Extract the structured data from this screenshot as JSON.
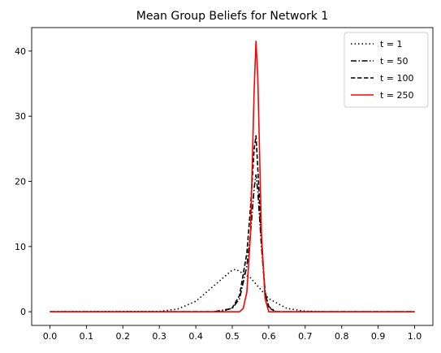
{
  "chart_data": {
    "type": "line",
    "title": "Mean Group Beliefs for Network 1",
    "xlabel": "",
    "ylabel": "",
    "xlim": [
      -0.05,
      1.05
    ],
    "ylim": [
      -2.1,
      43.6
    ],
    "xticks": [
      0.0,
      0.1,
      0.2,
      0.3,
      0.4,
      0.5,
      0.6,
      0.7,
      0.8,
      0.9,
      1.0
    ],
    "xtick_labels": [
      "0.0",
      "0.1",
      "0.2",
      "0.3",
      "0.4",
      "0.5",
      "0.6",
      "0.7",
      "0.8",
      "0.9",
      "1.0"
    ],
    "yticks": [
      0,
      10,
      20,
      30,
      40
    ],
    "ytick_labels": [
      "0",
      "10",
      "20",
      "30",
      "40"
    ],
    "grid": false,
    "legend_position": "top-right",
    "series": [
      {
        "name": "t = 1",
        "style": "dotted",
        "color": "#000000",
        "x": [
          0.0,
          0.3,
          0.35,
          0.4,
          0.45,
          0.5,
          0.51,
          0.55,
          0.6,
          0.65,
          0.7,
          0.75,
          1.0
        ],
        "y": [
          0.0,
          0.05,
          0.4,
          1.6,
          4.0,
          6.4,
          6.5,
          5.2,
          2.0,
          0.5,
          0.08,
          0.0,
          0.0
        ]
      },
      {
        "name": "t = 50",
        "style": "dashdot",
        "color": "#000000",
        "x": [
          0.0,
          0.45,
          0.5,
          0.52,
          0.54,
          0.55,
          0.56,
          0.565,
          0.57,
          0.58,
          0.59,
          0.6,
          0.62,
          1.0
        ],
        "y": [
          0.0,
          0.0,
          0.5,
          2.0,
          7.0,
          12.0,
          19.0,
          21.0,
          18.5,
          10.0,
          3.0,
          0.8,
          0.0,
          0.0
        ]
      },
      {
        "name": "t = 100",
        "style": "dashed",
        "color": "#000000",
        "x": [
          0.0,
          0.47,
          0.5,
          0.52,
          0.54,
          0.55,
          0.56,
          0.565,
          0.57,
          0.58,
          0.59,
          0.6,
          0.62,
          1.0
        ],
        "y": [
          0.0,
          0.0,
          0.6,
          2.5,
          9.0,
          16.0,
          25.0,
          27.0,
          22.0,
          11.0,
          3.0,
          0.6,
          0.0,
          0.0
        ]
      },
      {
        "name": "t = 250",
        "style": "solid",
        "color": "#ff0000",
        "x": [
          0.0,
          0.52,
          0.53,
          0.54,
          0.55,
          0.56,
          0.565,
          0.57,
          0.58,
          0.59,
          0.6,
          1.0
        ],
        "y": [
          0.0,
          0.0,
          0.5,
          3.0,
          12.0,
          34.0,
          41.5,
          36.0,
          12.0,
          2.0,
          0.0,
          0.0
        ]
      }
    ]
  }
}
